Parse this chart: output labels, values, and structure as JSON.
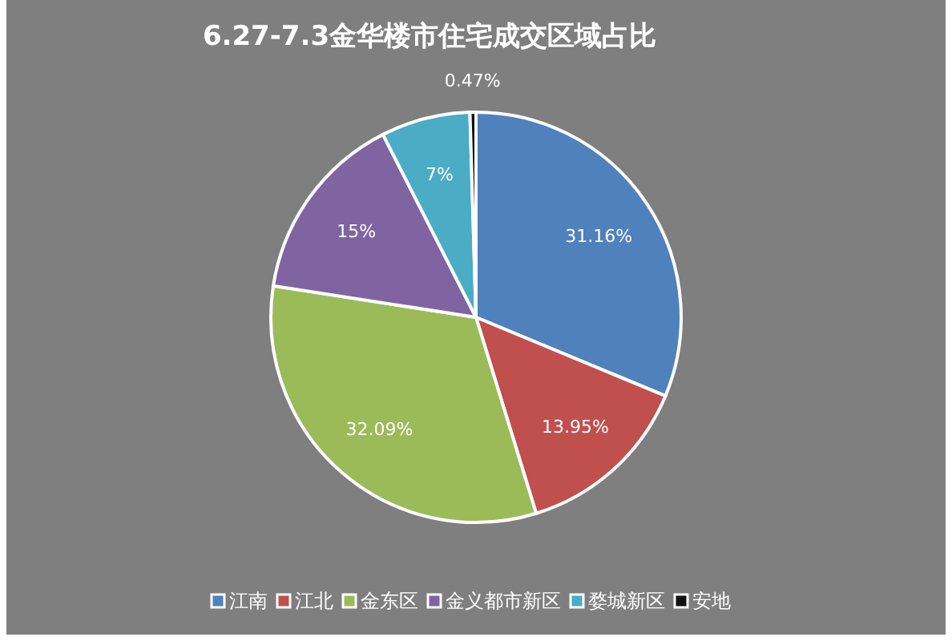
{
  "chart_data": {
    "type": "pie",
    "title": "6.27-7.3金华楼市住宅成交区域占比",
    "categories": [
      "江南",
      "江北",
      "金东区",
      "金义都市新区",
      "婺城新区",
      "安地"
    ],
    "values": [
      31.16,
      13.95,
      32.09,
      15,
      7,
      0.47
    ],
    "value_labels": [
      "31.16%",
      "13.95%",
      "32.09%",
      "15%",
      "7%",
      "0.47%"
    ],
    "colors": [
      "#4f81bd",
      "#c0504d",
      "#9bbb59",
      "#8064a2",
      "#4bacc6",
      "#111111"
    ],
    "legend": "bottom"
  }
}
